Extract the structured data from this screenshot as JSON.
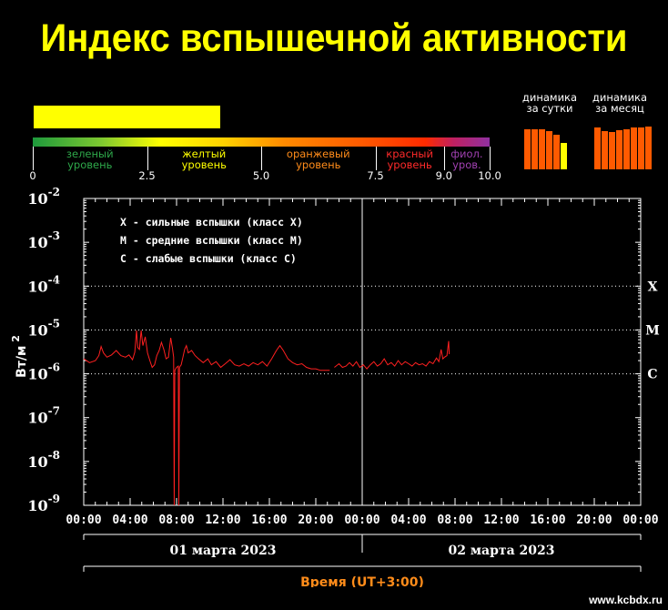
{
  "title": "Индекс вспышечной активности",
  "current_level": 4.1,
  "scale": {
    "min": 0,
    "max": 10,
    "ticks": [
      "0",
      "2.5",
      "5.0",
      "7.5",
      "9.0",
      "10.0"
    ],
    "tick_values": [
      0,
      2.5,
      5.0,
      7.5,
      9.0,
      10.0
    ],
    "zones": [
      {
        "line1": "зеленый",
        "line2": "уровень",
        "from": 0,
        "to": 2.5,
        "color": "#2ea84a"
      },
      {
        "line1": "желтый",
        "line2": "уровень",
        "from": 2.5,
        "to": 5.0,
        "color": "#ffff00"
      },
      {
        "line1": "оранжевый",
        "line2": "уровень",
        "from": 5.0,
        "to": 7.5,
        "color": "#ff8c1a"
      },
      {
        "line1": "красный",
        "line2": "уровень",
        "from": 7.5,
        "to": 9.0,
        "color": "#ff2a2a"
      },
      {
        "line1": "фиол.",
        "line2": "уров.",
        "from": 9.0,
        "to": 10.0,
        "color": "#a040b0"
      }
    ]
  },
  "dynamics": {
    "day": {
      "line1": "динамика",
      "line2": "за сутки",
      "values": [
        4.4,
        4.4,
        4.4,
        4.2,
        3.8,
        2.9
      ],
      "colors": [
        "#ff5a00",
        "#ff5a00",
        "#ff5a00",
        "#ff5a00",
        "#ff5a00",
        "#ffff00"
      ]
    },
    "month": {
      "line1": "динамика",
      "line2": "за месяц",
      "values": [
        4.6,
        4.2,
        4.1,
        4.3,
        4.4,
        4.6,
        4.6,
        4.7
      ],
      "colors": [
        "#ff5a00",
        "#ff5a00",
        "#ff5a00",
        "#ff5a00",
        "#ff5a00",
        "#ff5a00",
        "#ff5a00",
        "#ff5a00"
      ]
    }
  },
  "chart_data": {
    "type": "line",
    "ylabel": "Вт/м",
    "ylabel_sup": "2",
    "xlabel": "Время (UT+3:00)",
    "y_scale": "log",
    "ylim": [
      1e-09,
      0.01
    ],
    "y_ticks": [
      {
        "base": "10",
        "exp": "-2"
      },
      {
        "base": "10",
        "exp": "-3"
      },
      {
        "base": "10",
        "exp": "-4"
      },
      {
        "base": "10",
        "exp": "-5"
      },
      {
        "base": "10",
        "exp": "-6"
      },
      {
        "base": "10",
        "exp": "-7"
      },
      {
        "base": "10",
        "exp": "-8"
      },
      {
        "base": "10",
        "exp": "-9"
      }
    ],
    "x_range_hours": [
      0,
      48
    ],
    "x_tick_labels": [
      "00:00",
      "04:00",
      "08:00",
      "12:00",
      "16:00",
      "20:00",
      "00:00",
      "04:00",
      "08:00",
      "12:00",
      "16:00",
      "20:00",
      "00:00"
    ],
    "dates": [
      "01 марта 2023",
      "02 марта 2023"
    ],
    "class_lines": [
      {
        "label": "X",
        "value": 0.0001
      },
      {
        "label": "M",
        "value": 1e-05
      },
      {
        "label": "C",
        "value": 1e-06
      }
    ],
    "legend": [
      "X  - сильные вспышки (класс X)",
      "M - средние вспышки (класс M)",
      "C  - слабые вспышки (класс С)"
    ],
    "series": [
      {
        "color": "#ff2020",
        "segments": [
          [
            [
              0.0,
              2.2e-06
            ],
            [
              0.5,
              1.8e-06
            ],
            [
              1.0,
              2e-06
            ],
            [
              1.3,
              2.6e-06
            ],
            [
              1.5,
              4.2e-06
            ],
            [
              1.7,
              3e-06
            ],
            [
              2.0,
              2.4e-06
            ],
            [
              2.4,
              2.7e-06
            ],
            [
              2.8,
              3.4e-06
            ],
            [
              3.2,
              2.6e-06
            ],
            [
              3.6,
              2.4e-06
            ],
            [
              3.9,
              2.7e-06
            ],
            [
              4.2,
              2.1e-06
            ],
            [
              4.4,
              3.1e-06
            ],
            [
              4.55,
              9.8e-06
            ],
            [
              4.65,
              4e-06
            ],
            [
              4.8,
              3.6e-06
            ],
            [
              4.95,
              9.8e-06
            ],
            [
              5.1,
              4.4e-06
            ],
            [
              5.3,
              7e-06
            ],
            [
              5.5,
              3e-06
            ],
            [
              5.7,
              2e-06
            ],
            [
              5.9,
              1.4e-06
            ],
            [
              6.1,
              1.6e-06
            ],
            [
              6.3,
              2.6e-06
            ],
            [
              6.5,
              3.4e-06
            ],
            [
              6.7,
              5.2e-06
            ],
            [
              6.9,
              3.6e-06
            ],
            [
              7.1,
              2.2e-06
            ],
            [
              7.3,
              2.4e-06
            ],
            [
              7.5,
              6.6e-06
            ],
            [
              7.65,
              3.8e-06
            ],
            [
              7.75,
              2.4e-06
            ],
            [
              7.8,
              1e-09
            ],
            [
              7.85,
              1.2e-06
            ],
            [
              8.0,
              1.4e-06
            ],
            [
              8.15,
              1.5e-06
            ],
            [
              8.2,
              1e-09
            ],
            [
              8.25,
              1.4e-06
            ],
            [
              8.4,
              1.6e-06
            ],
            [
              8.55,
              2.4e-06
            ],
            [
              8.7,
              3.6e-06
            ],
            [
              8.85,
              4.4e-06
            ],
            [
              9.0,
              3e-06
            ],
            [
              9.3,
              3.4e-06
            ],
            [
              9.6,
              2.6e-06
            ],
            [
              9.9,
              2.2e-06
            ],
            [
              10.3,
              1.8e-06
            ],
            [
              10.7,
              2.2e-06
            ],
            [
              11.0,
              1.6e-06
            ],
            [
              11.4,
              1.9e-06
            ],
            [
              11.8,
              1.4e-06
            ],
            [
              12.2,
              1.7e-06
            ],
            [
              12.6,
              2.1e-06
            ],
            [
              13.0,
              1.6e-06
            ],
            [
              13.4,
              1.5e-06
            ],
            [
              13.8,
              1.7e-06
            ],
            [
              14.2,
              1.5e-06
            ],
            [
              14.6,
              1.8e-06
            ],
            [
              15.0,
              1.6e-06
            ],
            [
              15.4,
              1.9e-06
            ],
            [
              15.8,
              1.5e-06
            ],
            [
              16.2,
              2.2e-06
            ],
            [
              16.6,
              3.4e-06
            ],
            [
              16.9,
              4.4e-06
            ],
            [
              17.2,
              3.4e-06
            ],
            [
              17.6,
              2.2e-06
            ],
            [
              18.0,
              1.8e-06
            ],
            [
              18.4,
              1.6e-06
            ],
            [
              18.8,
              1.7e-06
            ],
            [
              19.2,
              1.4e-06
            ],
            [
              19.6,
              1.3e-06
            ],
            [
              20.0,
              1.3e-06
            ],
            [
              20.4,
              1.2e-06
            ],
            [
              20.8,
              1.2e-06
            ],
            [
              21.2,
              1.2e-06
            ]
          ],
          [
            [
              21.6,
              1.4e-06
            ],
            [
              22.0,
              1.7e-06
            ],
            [
              22.3,
              1.4e-06
            ],
            [
              22.6,
              1.5e-06
            ],
            [
              22.9,
              1.8e-06
            ],
            [
              23.2,
              1.5e-06
            ],
            [
              23.5,
              1.9e-06
            ],
            [
              23.8,
              1.4e-06
            ],
            [
              24.1,
              1.6e-06
            ],
            [
              24.4,
              1.3e-06
            ],
            [
              24.7,
              1.6e-06
            ],
            [
              25.0,
              1.9e-06
            ],
            [
              25.3,
              1.5e-06
            ],
            [
              25.6,
              1.7e-06
            ],
            [
              25.9,
              2.2e-06
            ],
            [
              26.2,
              1.6e-06
            ],
            [
              26.5,
              1.8e-06
            ],
            [
              26.8,
              1.5e-06
            ],
            [
              27.1,
              2e-06
            ],
            [
              27.4,
              1.6e-06
            ],
            [
              27.7,
              1.9e-06
            ],
            [
              28.0,
              1.7e-06
            ],
            [
              28.3,
              1.5e-06
            ],
            [
              28.6,
              1.8e-06
            ],
            [
              28.9,
              1.6e-06
            ],
            [
              29.2,
              1.7e-06
            ],
            [
              29.5,
              1.5e-06
            ],
            [
              29.8,
              1.9e-06
            ],
            [
              30.1,
              1.7e-06
            ],
            [
              30.4,
              2.3e-06
            ],
            [
              30.6,
              1.9e-06
            ],
            [
              30.8,
              3.6e-06
            ],
            [
              30.95,
              2.2e-06
            ],
            [
              31.1,
              2.4e-06
            ],
            [
              31.3,
              2.6e-06
            ],
            [
              31.45,
              5.6e-06
            ],
            [
              31.5,
              2.8e-06
            ]
          ]
        ]
      }
    ]
  },
  "watermark": "www.kcbdx.ru"
}
